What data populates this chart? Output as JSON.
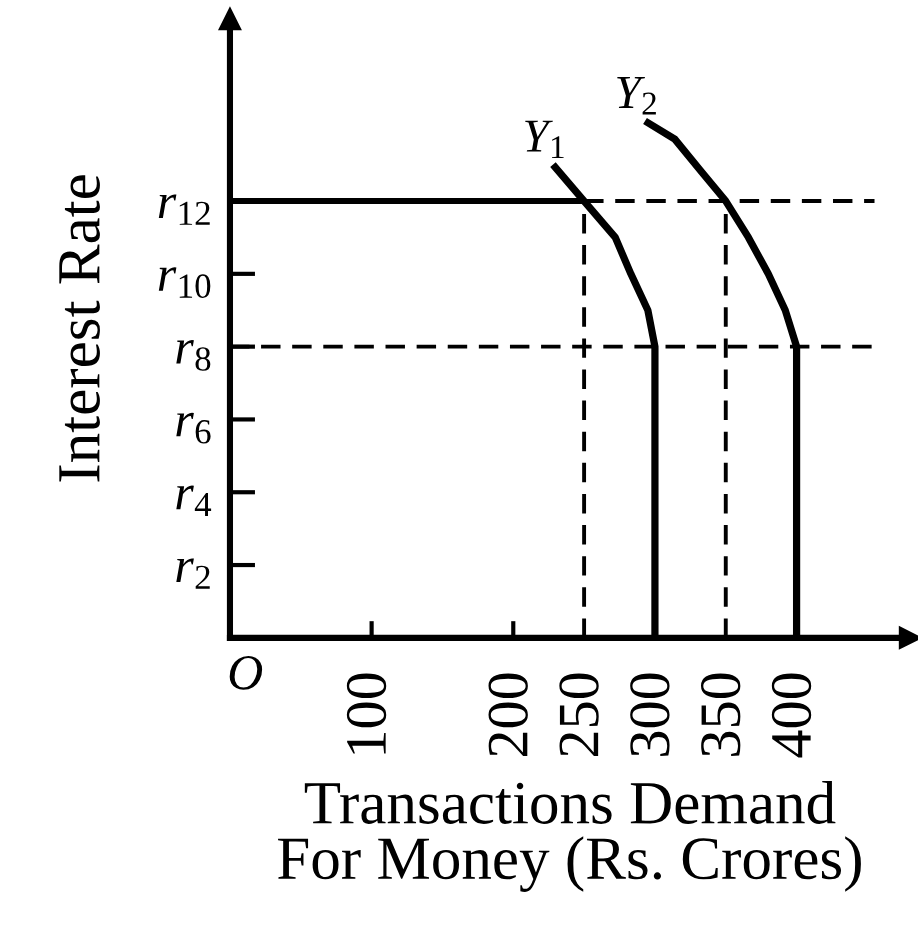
{
  "chart_data": {
    "type": "line",
    "xlabel": "Transactions Demand\nFor Money (Rs. Crores)",
    "ylabel": "Interest Rate",
    "xlim": [
      0,
      480
    ],
    "ylim": [
      0,
      17
    ],
    "xticks": [
      100,
      200,
      250,
      300,
      350,
      400
    ],
    "yticks": [
      {
        "value": 2,
        "label": "r$_{2}$"
      },
      {
        "value": 4,
        "label": "r$_{4}$"
      },
      {
        "value": 6,
        "label": "r$_{6}$"
      },
      {
        "value": 8,
        "label": "r$_{8}$"
      },
      {
        "value": 10,
        "label": "r$_{10}$"
      },
      {
        "value": 12,
        "label": "r$_{12}$"
      }
    ],
    "annotations": [
      "O"
    ],
    "series": [
      {
        "name": "Y$_{1}$",
        "color": "#000000",
        "line_style": "solid",
        "x": [
          228,
          250,
          272,
          283,
          295,
          300,
          300
        ],
        "values": [
          13,
          12,
          11,
          10,
          9,
          8,
          0
        ]
      },
      {
        "name": "Y$_{2}$",
        "color": "#000000",
        "line_style": "solid",
        "x": [
          293,
          314,
          333,
          350,
          366,
          380,
          392,
          400,
          400
        ],
        "values": [
          14.2,
          13.7,
          12.8,
          12,
          11,
          10,
          9,
          8,
          0
        ]
      },
      {
        "color": "#000000",
        "line_style": "solid",
        "x": [
          0,
          250
        ],
        "values": [
          12,
          12
        ]
      },
      {
        "color": "#000000",
        "line_style": "dashed",
        "x": [
          250,
          455
        ],
        "values": [
          12,
          12
        ]
      },
      {
        "color": "#000000",
        "line_style": "dashed",
        "x": [
          0,
          455
        ],
        "values": [
          8,
          8
        ]
      },
      {
        "color": "#000000",
        "line_style": "dashed",
        "x": [
          250,
          250
        ],
        "values": [
          0,
          12
        ]
      },
      {
        "color": "#000000",
        "line_style": "dashed",
        "x": [
          350,
          350
        ],
        "values": [
          0,
          12
        ]
      }
    ]
  }
}
